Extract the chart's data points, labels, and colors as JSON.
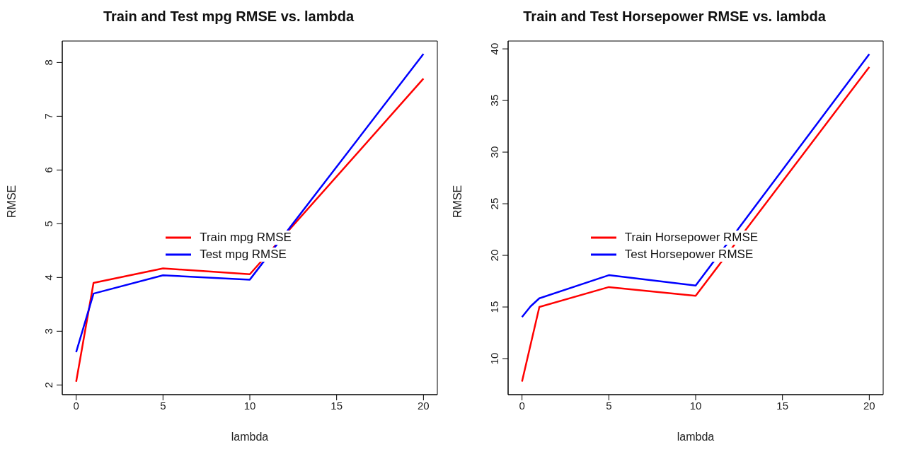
{
  "chart_data": [
    {
      "type": "line",
      "title": "Train and Test mpg RMSE vs. lambda",
      "xlabel": "lambda",
      "ylabel": "RMSE",
      "x": [
        0,
        1,
        5,
        10,
        20
      ],
      "series": [
        {
          "name": "Train mpg RMSE",
          "color": "#ff0000",
          "values": [
            2.06,
            3.9,
            4.17,
            4.06,
            7.7
          ]
        },
        {
          "name": "Test mpg RMSE",
          "color": "#0000ff",
          "values": [
            2.61,
            3.7,
            4.04,
            3.96,
            8.16
          ]
        }
      ],
      "xlim": [
        -0.8,
        20.8
      ],
      "xticks": [
        0,
        5,
        10,
        15,
        20
      ],
      "ylim": [
        1.82,
        8.4
      ],
      "yticks": [
        2,
        3,
        4,
        5,
        6,
        7,
        8
      ],
      "legend": "center",
      "grid": false,
      "marker": "none",
      "line_style": "solid"
    },
    {
      "type": "line",
      "title": "Train and Test Horsepower RMSE vs. lambda",
      "xlabel": "lambda",
      "ylabel": "RMSE",
      "x": [
        0,
        1,
        5,
        10,
        20
      ],
      "series": [
        {
          "name": "Train Horsepower RMSE",
          "color": "#ff0000",
          "values": [
            7.78,
            15.0,
            16.93,
            16.08,
            38.24
          ]
        },
        {
          "name": "Test Horsepower RMSE",
          "color": "#0000ff",
          "x": [
            0,
            0.5,
            1,
            5,
            10,
            20
          ],
          "values": [
            14.03,
            15.07,
            15.84,
            18.08,
            17.07,
            39.49
          ]
        }
      ],
      "xlim": [
        -0.8,
        20.8
      ],
      "xticks": [
        0,
        5,
        10,
        15,
        20
      ],
      "ylim": [
        6.51,
        40.76
      ],
      "yticks": [
        10,
        15,
        20,
        25,
        30,
        35,
        40
      ],
      "legend": "center",
      "grid": false,
      "marker": "none",
      "line_style": "solid"
    }
  ]
}
